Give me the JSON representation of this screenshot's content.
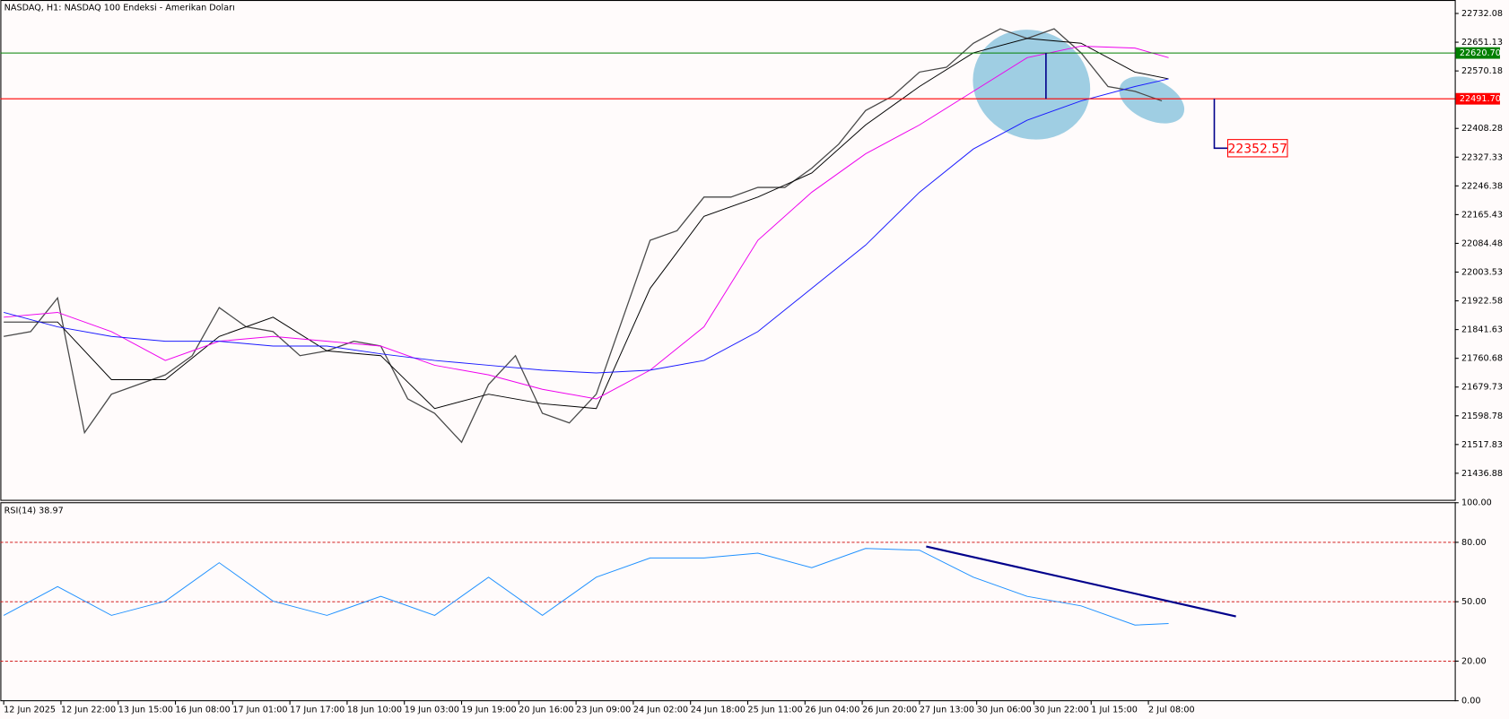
{
  "chart_data": [
    {
      "type": "line",
      "title": "NASDAQ, H1:  NASDAQ 100 Endeksi - Amerikan Doları",
      "xlim": [
        -1,
        431
      ],
      "xticks": [
        {
          "value": 0,
          "label": "12 Jun 2025"
        },
        {
          "value": 17,
          "label": "12 Jun 22:00"
        },
        {
          "value": 34,
          "label": "13 Jun 15:00"
        },
        {
          "value": 51,
          "label": "16 Jun 08:00"
        },
        {
          "value": 68,
          "label": "17 Jun 01:00"
        },
        {
          "value": 85,
          "label": "17 Jun 17:00"
        },
        {
          "value": 102,
          "label": "18 Jun 10:00"
        },
        {
          "value": 119,
          "label": "19 Jun 03:00"
        },
        {
          "value": 136,
          "label": "19 Jun 19:00"
        },
        {
          "value": 153,
          "label": "20 Jun 16:00"
        },
        {
          "value": 170,
          "label": "23 Jun 09:00"
        },
        {
          "value": 187,
          "label": "24 Jun 02:00"
        },
        {
          "value": 204,
          "label": "24 Jun 18:00"
        },
        {
          "value": 221,
          "label": "25 Jun 11:00"
        },
        {
          "value": 238,
          "label": "26 Jun 04:00"
        },
        {
          "value": 255,
          "label": "26 Jun 20:00"
        },
        {
          "value": 272,
          "label": "27 Jun 13:00"
        },
        {
          "value": 289,
          "label": "30 Jun 06:00"
        },
        {
          "value": 306,
          "label": "30 Jun 22:00"
        },
        {
          "value": 323,
          "label": "1 Jul 15:00"
        },
        {
          "value": 340,
          "label": "2 Jul 08:00"
        }
      ],
      "ylim": [
        21362,
        22770
      ],
      "yticks": [
        22732.08,
        22651.13,
        22570.18,
        22408.28,
        22327.33,
        22246.38,
        22165.43,
        22084.48,
        22003.53,
        21922.58,
        21841.63,
        21760.68,
        21679.73,
        21598.78,
        21517.83,
        21436.88
      ],
      "series": [
        {
          "color": "#4a4a4a",
          "x": [
            0,
            8,
            16,
            24,
            32,
            40,
            48,
            56,
            64,
            72,
            80,
            88,
            96,
            104,
            112,
            120,
            128,
            136,
            144,
            152,
            160,
            168,
            176,
            184,
            192,
            200,
            208,
            216,
            224,
            232,
            240,
            248,
            256,
            264,
            272,
            280,
            288,
            296,
            304,
            312,
            320,
            328,
            336,
            344
          ],
          "values": [
            21822.2,
            21835.8,
            21930.5,
            21551.4,
            21659.7,
            21686.8,
            21713.9,
            21768.1,
            21903.5,
            21849.3,
            21835.8,
            21768.1,
            21781.6,
            21808.7,
            21795.1,
            21646.2,
            21605.6,
            21524.3,
            21686.8,
            21768.1,
            21605.6,
            21578.5,
            21659.7,
            21876.4,
            22093.0,
            22120.1,
            22214.9,
            22214.9,
            22242.0,
            22242.0,
            22296.1,
            22363.8,
            22458.6,
            22499.2,
            22566.9,
            22580.5,
            22648.2,
            22688.8,
            22661.7,
            22688.8,
            22621.1,
            22526.3,
            22512.8,
            22485.7
          ]
        },
        {
          "color": "#000000",
          "x": [
            0,
            16,
            32,
            48,
            64,
            80,
            96,
            112,
            128,
            144,
            160,
            176,
            192,
            208,
            224,
            240,
            256,
            272,
            288,
            304,
            320,
            336,
            346
          ],
          "values": [
            21862.8,
            21862.8,
            21700.4,
            21700.4,
            21822.2,
            21876.4,
            21781.6,
            21768.1,
            21619.1,
            21659.7,
            21632.7,
            21619.1,
            21957.6,
            22160.7,
            22214.9,
            22282.6,
            22418.0,
            22526.3,
            22621.1,
            22661.7,
            22648.2,
            22566.9,
            22548.0
          ]
        },
        {
          "color": "#ee00ee",
          "x": [
            0,
            16,
            32,
            48,
            64,
            80,
            96,
            112,
            128,
            144,
            160,
            176,
            192,
            208,
            224,
            240,
            256,
            272,
            288,
            304,
            320,
            336,
            346
          ],
          "values": [
            21876.4,
            21889.9,
            21835.8,
            21754.5,
            21808.7,
            21822.2,
            21808.7,
            21795.1,
            21741.0,
            21713.9,
            21673.3,
            21646.2,
            21727.4,
            21849.3,
            22093.0,
            22228.4,
            22336.7,
            22418.0,
            22512.8,
            22607.5,
            22640.0,
            22634.6,
            22607.5
          ]
        },
        {
          "color": "#1a1aff",
          "x": [
            0,
            16,
            32,
            48,
            64,
            80,
            96,
            112,
            128,
            144,
            160,
            176,
            192,
            208,
            224,
            240,
            256,
            272,
            288,
            304,
            320,
            336,
            346
          ],
          "values": [
            21889.9,
            21849.3,
            21822.2,
            21808.7,
            21808.7,
            21795.1,
            21795.1,
            21773.4,
            21754.5,
            21741.0,
            21727.4,
            21719.3,
            21727.4,
            21754.5,
            21835.8,
            21957.6,
            22079.5,
            22228.4,
            22350.3,
            22431.5,
            22485.7,
            22526.3,
            22548.0
          ]
        }
      ],
      "hlines": [
        {
          "value": 22620.7,
          "label": "22620.70",
          "color": "#008000"
        },
        {
          "value": 22491.7,
          "label": "22491.70",
          "color": "#ff0000"
        }
      ],
      "annotation": 22352.57
    },
    {
      "type": "line",
      "title": "RSI(14) 38.97",
      "xlim": [
        -1,
        431
      ],
      "ylim": [
        0,
        100
      ],
      "yticks": [
        {
          "value": 100,
          "label": "100.00"
        },
        {
          "value": 80,
          "label": "80.00"
        },
        {
          "value": 50,
          "label": "50.00"
        },
        {
          "value": 20,
          "label": "20.00"
        },
        {
          "value": 0,
          "label": "0.00"
        }
      ],
      "levels": [
        80,
        50,
        20
      ],
      "series": [
        {
          "color": "#1e90ff",
          "x": [
            0,
            16,
            32,
            48,
            64,
            80,
            96,
            112,
            128,
            144,
            160,
            176,
            192,
            208,
            224,
            240,
            256,
            272,
            288,
            304,
            320,
            336,
            346
          ],
          "values": [
            43.1,
            57.6,
            43.1,
            50.3,
            69.7,
            50.3,
            43.1,
            52.7,
            43.1,
            62.4,
            43.1,
            62.4,
            72.1,
            72.1,
            74.5,
            67.2,
            76.9,
            76.0,
            62.4,
            52.7,
            47.9,
            38.2,
            38.97
          ]
        }
      ],
      "trendline": {
        "x": [
          274,
          366
        ],
        "values": [
          77.9,
          42.6
        ]
      }
    }
  ]
}
